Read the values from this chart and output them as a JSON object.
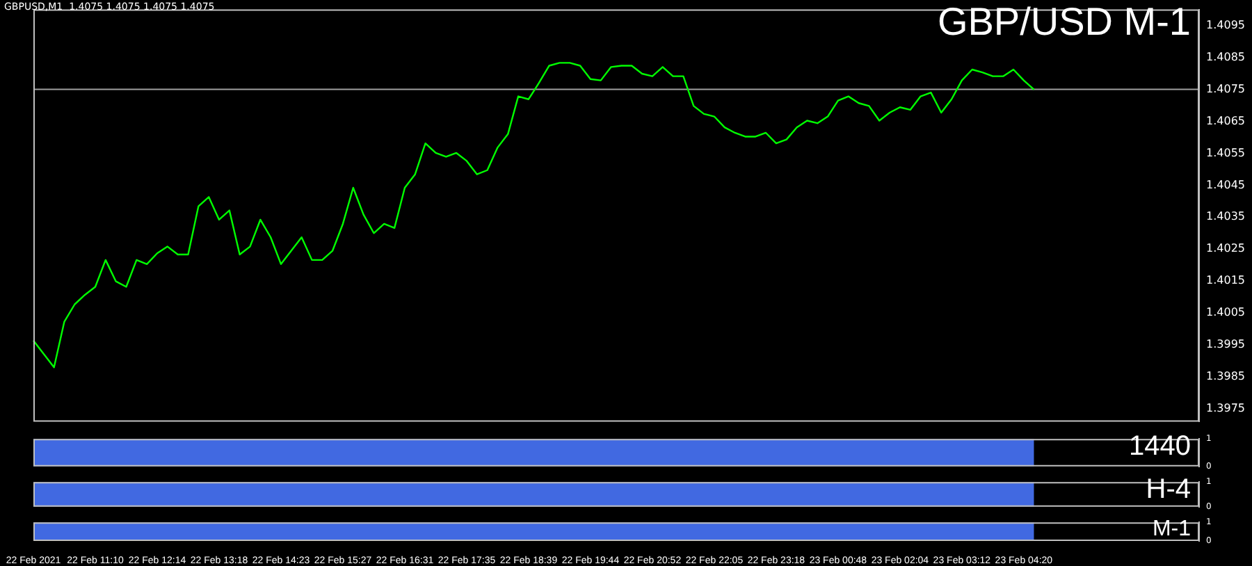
{
  "chart_data": [
    {
      "type": "line",
      "title": "GBP/USD M-1",
      "subtitle": "GBPUSD,M1  1.4075 1.4075 1.4075 1.4075",
      "tick_labels": "y",
      "categories": [
        null,
        null,
        null,
        null,
        null,
        null,
        null,
        null,
        null,
        null,
        null,
        null,
        null,
        null,
        null,
        null,
        null,
        null,
        null,
        null,
        null,
        null,
        null,
        null,
        null,
        null,
        null,
        null,
        null,
        null,
        null,
        null,
        null,
        null,
        null,
        null,
        null,
        null,
        null,
        null,
        null,
        null,
        null,
        null,
        null,
        null,
        null,
        null,
        null,
        null,
        null,
        null,
        null,
        null,
        null,
        null,
        null,
        null,
        null,
        null,
        null,
        null,
        null,
        null,
        null,
        null,
        null,
        null,
        null,
        null,
        null,
        null,
        null,
        null,
        null,
        null,
        null,
        null,
        null,
        null,
        null,
        null,
        null,
        null,
        null,
        null,
        null,
        null,
        null,
        null,
        null,
        null,
        null,
        null,
        null,
        null,
        null,
        null,
        null,
        null,
        null,
        null,
        null,
        null,
        null,
        null,
        null,
        null,
        null,
        null,
        null,
        null,
        null,
        null
      ],
      "color": "#00ff00",
      "values": [
        1.39964,
        1.39922,
        1.3988,
        1.40023,
        1.40077,
        1.40107,
        1.40132,
        1.40216,
        1.40149,
        1.40132,
        1.40216,
        1.40203,
        1.40237,
        1.40258,
        1.40233,
        1.40233,
        1.40384,
        1.40413,
        1.40342,
        1.40371,
        1.40233,
        1.40258,
        1.40342,
        1.40287,
        1.40203,
        1.40245,
        1.40287,
        1.40216,
        1.40216,
        1.40245,
        1.40329,
        1.40442,
        1.40358,
        1.403,
        1.40329,
        1.40316,
        1.40442,
        1.40484,
        1.40581,
        1.40551,
        1.40539,
        1.40551,
        1.40526,
        1.40484,
        1.40497,
        1.40568,
        1.4061,
        1.40728,
        1.40719,
        1.4077,
        1.40824,
        1.40833,
        1.40833,
        1.40824,
        1.40782,
        1.40778,
        1.4082,
        1.40824,
        1.40824,
        1.40799,
        1.40791,
        1.4082,
        1.40791,
        1.40791,
        1.40698,
        1.40673,
        1.40665,
        1.40631,
        1.40614,
        1.40602,
        1.40602,
        1.40614,
        1.40581,
        1.40593,
        1.40631,
        1.40652,
        1.40644,
        1.40665,
        1.40715,
        1.40728,
        1.40707,
        1.40698,
        1.40652,
        1.40677,
        1.40694,
        1.40686,
        1.40728,
        1.4074,
        1.40677,
        1.40719,
        1.40778,
        1.40812,
        1.40803,
        1.40791,
        1.40791,
        1.40812,
        1.40778,
        1.40749,
        null,
        null,
        null,
        null,
        null,
        null,
        null,
        null,
        null,
        null,
        null,
        null,
        null,
        null,
        null,
        null
      ],
      "ylim": [
        1.3971,
        1.41
      ],
      "yticks": [
        1.3975,
        1.3985,
        1.3995,
        1.4005,
        1.4015,
        1.4025,
        1.4035,
        1.4045,
        1.4055,
        1.4065,
        1.4075,
        1.4085,
        1.4095
      ],
      "ref_lines": [
        {
          "axis": "y",
          "value": 1.4075,
          "color": "#a0a0a0"
        }
      ]
    },
    {
      "type": "area",
      "title": "1440",
      "tick_labels": "y",
      "color": "#4169e1",
      "ylim": [
        0,
        1
      ],
      "yticks": [
        0,
        1
      ],
      "categories": [
        null,
        null,
        null,
        null,
        null,
        null,
        null,
        null,
        null,
        null,
        null,
        null,
        null,
        null,
        null,
        null,
        null,
        null,
        null,
        null,
        null,
        null,
        null,
        null,
        null,
        null,
        null,
        null,
        null,
        null,
        null,
        null,
        null,
        null,
        null,
        null,
        null,
        null,
        null,
        null,
        null,
        null,
        null,
        null,
        null,
        null,
        null,
        null,
        null,
        null,
        null,
        null,
        null,
        null,
        null,
        null,
        null,
        null,
        null,
        null,
        null,
        null,
        null,
        null,
        null,
        null,
        null,
        null,
        null,
        null,
        null,
        null,
        null,
        null,
        null,
        null,
        null,
        null,
        null,
        null,
        null,
        null,
        null,
        null,
        null,
        null,
        null,
        null,
        null,
        null,
        null,
        null,
        null,
        null,
        null,
        null,
        null,
        null,
        null,
        null,
        null,
        null,
        null,
        null,
        null,
        null,
        null,
        null,
        null,
        null,
        null,
        null,
        null,
        null
      ],
      "values": [
        1,
        1,
        1,
        1,
        1,
        1,
        1,
        1,
        1,
        1,
        1,
        1,
        1,
        1,
        1,
        1,
        1,
        1,
        1,
        1,
        1,
        1,
        1,
        1,
        1,
        1,
        1,
        1,
        1,
        1,
        1,
        1,
        1,
        1,
        1,
        1,
        1,
        1,
        1,
        1,
        1,
        1,
        1,
        1,
        1,
        1,
        1,
        1,
        1,
        1,
        1,
        1,
        1,
        1,
        1,
        1,
        1,
        1,
        1,
        1,
        1,
        1,
        1,
        1,
        1,
        1,
        1,
        1,
        1,
        1,
        1,
        1,
        1,
        1,
        1,
        1,
        1,
        1,
        1,
        1,
        1,
        1,
        1,
        1,
        1,
        1,
        1,
        1,
        1,
        1,
        1,
        1,
        1,
        1,
        1,
        1,
        1,
        1,
        null,
        null,
        null,
        null,
        null,
        null,
        null,
        null,
        null,
        null,
        null,
        null,
        null,
        null,
        null,
        null
      ]
    },
    {
      "type": "area",
      "title": "H-4",
      "tick_labels": "y",
      "color": "#4169e1",
      "ylim": [
        0,
        1
      ],
      "yticks": [
        0,
        1
      ],
      "categories": [
        null,
        null,
        null,
        null,
        null,
        null,
        null,
        null,
        null,
        null,
        null,
        null,
        null,
        null,
        null,
        null,
        null,
        null,
        null,
        null,
        null,
        null,
        null,
        null,
        null,
        null,
        null,
        null,
        null,
        null,
        null,
        null,
        null,
        null,
        null,
        null,
        null,
        null,
        null,
        null,
        null,
        null,
        null,
        null,
        null,
        null,
        null,
        null,
        null,
        null,
        null,
        null,
        null,
        null,
        null,
        null,
        null,
        null,
        null,
        null,
        null,
        null,
        null,
        null,
        null,
        null,
        null,
        null,
        null,
        null,
        null,
        null,
        null,
        null,
        null,
        null,
        null,
        null,
        null,
        null,
        null,
        null,
        null,
        null,
        null,
        null,
        null,
        null,
        null,
        null,
        null,
        null,
        null,
        null,
        null,
        null,
        null,
        null,
        null,
        null,
        null,
        null,
        null,
        null,
        null,
        null,
        null,
        null,
        null,
        null,
        null,
        null,
        null,
        null
      ],
      "values": [
        1,
        1,
        1,
        1,
        1,
        1,
        1,
        1,
        1,
        1,
        1,
        1,
        1,
        1,
        1,
        1,
        1,
        1,
        1,
        1,
        1,
        1,
        1,
        1,
        1,
        1,
        1,
        1,
        1,
        1,
        1,
        1,
        1,
        1,
        1,
        1,
        1,
        1,
        1,
        1,
        1,
        1,
        1,
        1,
        1,
        1,
        1,
        1,
        1,
        1,
        1,
        1,
        1,
        1,
        1,
        1,
        1,
        1,
        1,
        1,
        1,
        1,
        1,
        1,
        1,
        1,
        1,
        1,
        1,
        1,
        1,
        1,
        1,
        1,
        1,
        1,
        1,
        1,
        1,
        1,
        1,
        1,
        1,
        1,
        1,
        1,
        1,
        1,
        1,
        1,
        1,
        1,
        1,
        1,
        1,
        1,
        1,
        1,
        null,
        null,
        null,
        null,
        null,
        null,
        null,
        null,
        null,
        null,
        null,
        null,
        null,
        null,
        null,
        null
      ]
    },
    {
      "type": "area",
      "title": "M-1",
      "color": "#4169e1",
      "ylim": [
        0,
        1
      ],
      "yticks": [
        0,
        1
      ],
      "categories": [
        "22 Feb 2021",
        null,
        null,
        null,
        null,
        null,
        "22 Feb 11:10",
        null,
        null,
        null,
        null,
        null,
        "22 Feb 12:14",
        null,
        null,
        null,
        null,
        null,
        "22 Feb 13:18",
        null,
        null,
        null,
        null,
        null,
        "22 Feb 14:23",
        null,
        null,
        null,
        null,
        null,
        "22 Feb 15:27",
        null,
        null,
        null,
        null,
        null,
        "22 Feb 16:31",
        null,
        null,
        null,
        null,
        null,
        "22 Feb 17:35",
        null,
        null,
        null,
        null,
        null,
        "22 Feb 18:39",
        null,
        null,
        null,
        null,
        null,
        "22 Feb 19:44",
        null,
        null,
        null,
        null,
        null,
        "22 Feb 20:52",
        null,
        null,
        null,
        null,
        null,
        "22 Feb 22:05",
        null,
        null,
        null,
        null,
        null,
        "22 Feb 23:18",
        null,
        null,
        null,
        null,
        null,
        "23 Feb 00:48",
        null,
        null,
        null,
        null,
        null,
        "23 Feb 02:04",
        null,
        null,
        null,
        null,
        null,
        "23 Feb 03:12",
        null,
        null,
        null,
        null,
        null,
        "23 Feb 04:20",
        null,
        null,
        null,
        null,
        null,
        null,
        null,
        null,
        null,
        null,
        null,
        null,
        null,
        null,
        null,
        null,
        null
      ],
      "values": [
        1,
        1,
        1,
        1,
        1,
        1,
        1,
        1,
        1,
        1,
        1,
        1,
        1,
        1,
        1,
        1,
        1,
        1,
        1,
        1,
        1,
        1,
        1,
        1,
        1,
        1,
        1,
        1,
        1,
        1,
        1,
        1,
        1,
        1,
        1,
        1,
        1,
        1,
        1,
        1,
        1,
        1,
        1,
        1,
        1,
        1,
        1,
        1,
        1,
        1,
        1,
        1,
        1,
        1,
        1,
        1,
        1,
        1,
        1,
        1,
        1,
        1,
        1,
        1,
        1,
        1,
        1,
        1,
        1,
        1,
        1,
        1,
        1,
        1,
        1,
        1,
        1,
        1,
        1,
        1,
        1,
        1,
        1,
        1,
        1,
        1,
        1,
        1,
        1,
        1,
        1,
        1,
        1,
        1,
        1,
        1,
        1,
        1,
        null,
        null,
        null,
        null,
        null,
        null,
        null,
        null,
        null,
        null,
        null,
        null,
        null,
        null,
        null,
        null
      ]
    }
  ]
}
